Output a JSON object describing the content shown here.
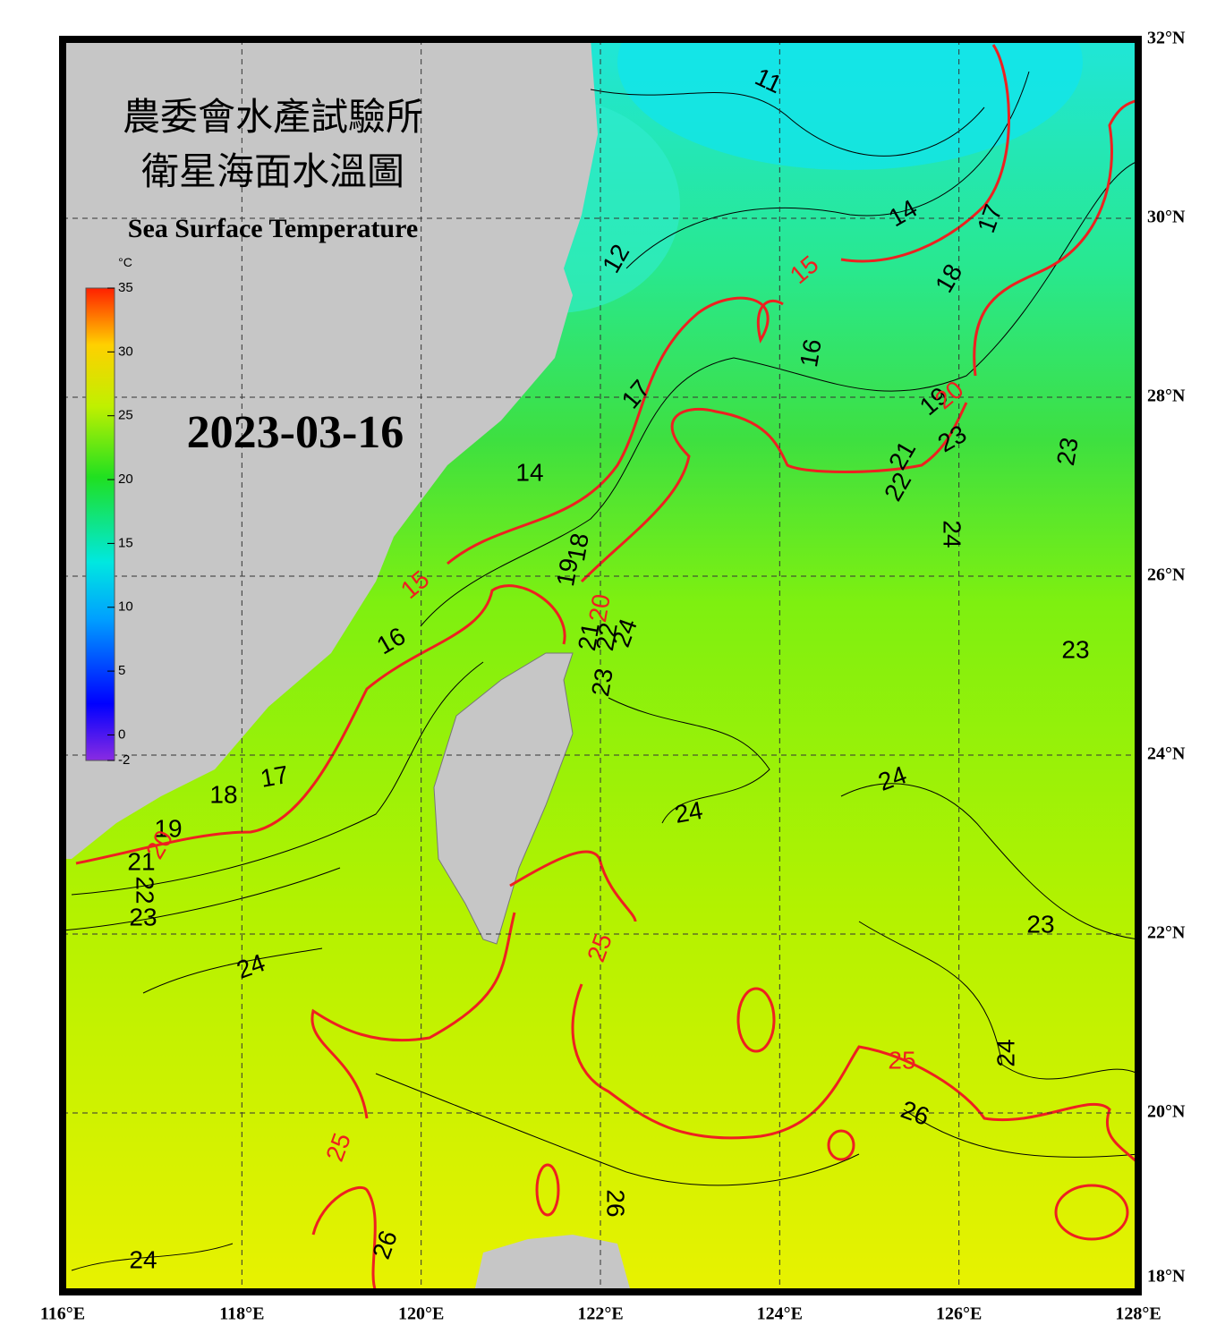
{
  "header": {
    "title_zh_1": "農委會水產試驗所",
    "title_zh_2": "衛星海面水溫圖",
    "title_en": "Sea Surface Temperature",
    "date": "2023-03-16"
  },
  "colorbar": {
    "unit": "°C",
    "range": [
      -2,
      35
    ],
    "ticks": [
      35,
      30,
      25,
      20,
      15,
      10,
      5,
      0,
      -2
    ]
  },
  "latitude_labels": [
    "32°N",
    "30°N",
    "28°N",
    "26°N",
    "24°N",
    "22°N",
    "20°N",
    "18°N"
  ],
  "longitude_labels": [
    "116°E",
    "118°E",
    "120°E",
    "122°E",
    "124°E",
    "126°E",
    "128°E"
  ],
  "contour_labels": [
    11,
    14,
    17,
    15,
    12,
    18,
    16,
    17,
    19,
    20,
    23,
    21,
    22,
    23,
    14,
    24,
    18,
    19,
    20,
    15,
    21,
    22,
    24,
    16,
    23,
    23,
    17,
    24,
    18,
    24,
    19,
    20,
    21,
    22,
    23,
    25,
    23,
    24,
    24,
    25,
    26,
    25,
    26,
    26,
    24
  ]
}
